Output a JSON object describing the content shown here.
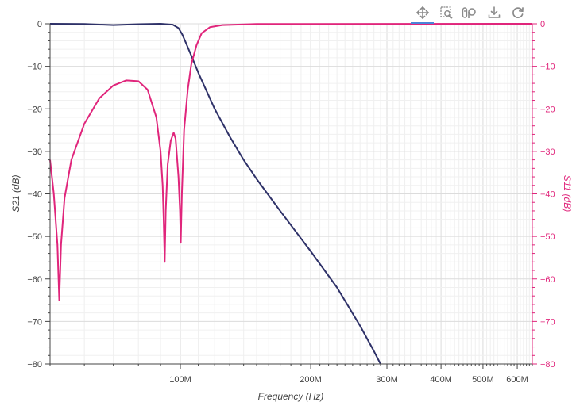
{
  "toolbar": {
    "tools": [
      {
        "name": "pan-tool",
        "icon": "move-icon",
        "active": true
      },
      {
        "name": "box-zoom-tool",
        "icon": "box-zoom-icon",
        "active": false
      },
      {
        "name": "wheel-zoom-tool",
        "icon": "wheel-zoom-icon",
        "active": false
      },
      {
        "name": "save-tool",
        "icon": "download-icon",
        "active": false
      },
      {
        "name": "reset-tool",
        "icon": "reset-icon",
        "active": false
      }
    ],
    "active_color": "#4a84d9",
    "icon_color": "#8a8a8a"
  },
  "chart_data": {
    "type": "line",
    "xlabel": "Frequency (Hz)",
    "ylabel_left": "S21 (dB)",
    "ylabel_right": "S11 (dB)",
    "x_scale": "log",
    "xlim": [
      50000000,
      650000000
    ],
    "ylim": [
      -80,
      0
    ],
    "x_tick_labels": [
      {
        "value": 100000000,
        "label": "100M"
      },
      {
        "value": 200000000,
        "label": "200M"
      },
      {
        "value": 300000000,
        "label": "300M"
      },
      {
        "value": 400000000,
        "label": "400M"
      },
      {
        "value": 500000000,
        "label": "500M"
      },
      {
        "value": 600000000,
        "label": "600M"
      }
    ],
    "y_ticks_left": [
      0,
      -10,
      -20,
      -30,
      -40,
      -50,
      -60,
      -70,
      -80
    ],
    "y_ticks_right": [
      0,
      -10,
      -20,
      -30,
      -40,
      -50,
      -60,
      -70,
      -80
    ],
    "grid": true,
    "series": [
      {
        "axis": "left",
        "color": "#2e3168",
        "points": [
          [
            50000000,
            0
          ],
          [
            60000000,
            -0.05
          ],
          [
            70000000,
            -0.3
          ],
          [
            80000000,
            -0.1
          ],
          [
            90000000,
            0
          ],
          [
            96000000,
            -0.2
          ],
          [
            99000000,
            -1.0
          ],
          [
            101000000,
            -2.5
          ],
          [
            103000000,
            -4.5
          ],
          [
            106000000,
            -7.5
          ],
          [
            110000000,
            -11.5
          ],
          [
            120000000,
            -20
          ],
          [
            130000000,
            -26.5
          ],
          [
            140000000,
            -32
          ],
          [
            150000000,
            -36.5
          ],
          [
            170000000,
            -44
          ],
          [
            200000000,
            -53.5
          ],
          [
            230000000,
            -62
          ],
          [
            260000000,
            -71
          ],
          [
            280000000,
            -77
          ],
          [
            290000000,
            -80
          ]
        ]
      },
      {
        "axis": "right",
        "color": "#e0257b",
        "points": [
          [
            50000000,
            -32
          ],
          [
            51000000,
            -40
          ],
          [
            52000000,
            -52
          ],
          [
            52500000,
            -65
          ],
          [
            53000000,
            -52
          ],
          [
            54000000,
            -41
          ],
          [
            56000000,
            -32
          ],
          [
            60000000,
            -23.5
          ],
          [
            65000000,
            -17.5
          ],
          [
            70000000,
            -14.5
          ],
          [
            75000000,
            -13.3
          ],
          [
            80000000,
            -13.5
          ],
          [
            84000000,
            -15.5
          ],
          [
            88000000,
            -22
          ],
          [
            90000000,
            -30
          ],
          [
            91000000,
            -38
          ],
          [
            91500000,
            -46
          ],
          [
            92000000,
            -56
          ],
          [
            92500000,
            -44
          ],
          [
            93500000,
            -33
          ],
          [
            95000000,
            -27.5
          ],
          [
            96500000,
            -25.6
          ],
          [
            97500000,
            -27
          ],
          [
            99000000,
            -36
          ],
          [
            99800000,
            -44
          ],
          [
            100200000,
            -51.5
          ],
          [
            100800000,
            -40
          ],
          [
            102000000,
            -25
          ],
          [
            104000000,
            -15.5
          ],
          [
            106000000,
            -9.5
          ],
          [
            109000000,
            -5
          ],
          [
            112000000,
            -2.2
          ],
          [
            117000000,
            -0.8
          ],
          [
            125000000,
            -0.3
          ],
          [
            150000000,
            -0.05
          ],
          [
            650000000,
            0
          ]
        ]
      }
    ]
  }
}
